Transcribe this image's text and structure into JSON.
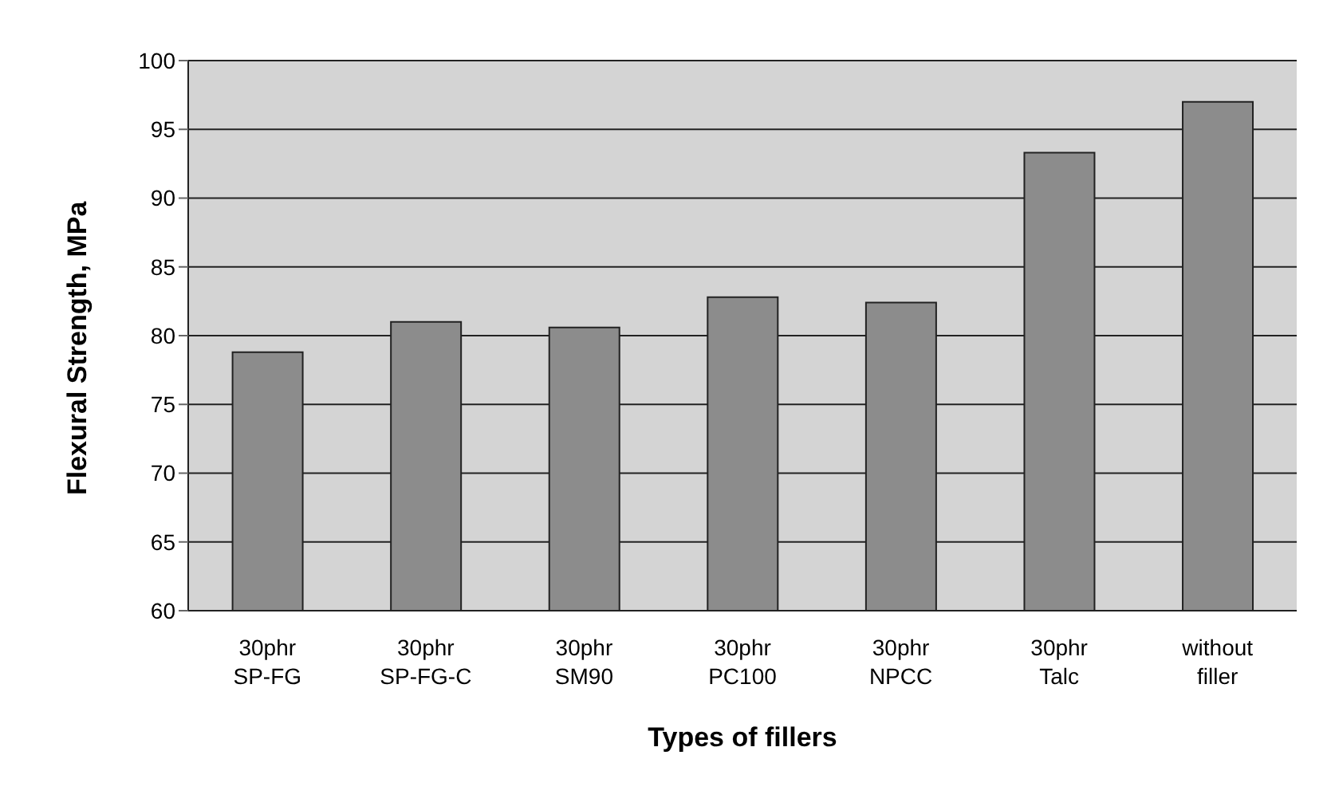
{
  "chart_data": {
    "type": "bar",
    "xlabel": "Types of fillers",
    "ylabel": "Flexural Strength, MPa",
    "categories": [
      "30phr SP-FG",
      "30phr SP-FG-C",
      "30phr SM90",
      "30phr PC100",
      "30phr NPCC",
      "30phr Talc",
      "without filler"
    ],
    "values": [
      78.8,
      81,
      80.6,
      82.8,
      82.4,
      93.3,
      97
    ],
    "color": "#8c8c8c",
    "ylim": [
      60,
      100
    ],
    "yticks": [
      60,
      65,
      70,
      75,
      80,
      85,
      90,
      95,
      100
    ],
    "grid": "y",
    "legend": false
  }
}
